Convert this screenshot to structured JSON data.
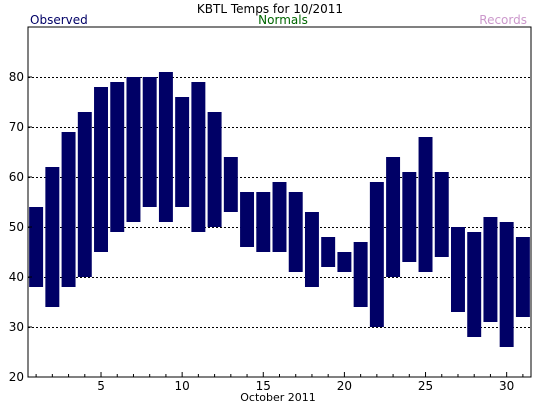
{
  "chart_data": {
    "type": "bar",
    "subtype": "floating-range",
    "title": "KBTL Temps for 10/2011",
    "legend": [
      {
        "label": "Observed",
        "color": "#000066"
      },
      {
        "label": "Normals",
        "color": "#006600"
      },
      {
        "label": "Records",
        "color": "#cc99cc"
      }
    ],
    "xlabel": "October 2011",
    "x_ticks": [
      "5",
      "10",
      "15",
      "20",
      "25",
      "30"
    ],
    "y_ticks": [
      "20",
      "30",
      "40",
      "50",
      "60",
      "70",
      "80"
    ],
    "xlim": [
      0.5,
      31.5
    ],
    "ylim": [
      20,
      90
    ],
    "grid": "horizontal dashed",
    "bar_color": "#000066",
    "days": [
      1,
      2,
      3,
      4,
      5,
      6,
      7,
      8,
      9,
      10,
      11,
      12,
      13,
      14,
      15,
      16,
      17,
      18,
      19,
      20,
      21,
      22,
      23,
      24,
      25,
      26,
      27,
      28,
      29,
      30,
      31
    ],
    "highs": [
      54,
      62,
      69,
      73,
      78,
      79,
      80,
      80,
      81,
      76,
      79,
      73,
      64,
      57,
      57,
      59,
      57,
      53,
      48,
      45,
      47,
      59,
      64,
      61,
      68,
      61,
      50,
      49,
      52,
      51,
      48
    ],
    "lows": [
      38,
      34,
      38,
      40,
      45,
      49,
      51,
      54,
      51,
      54,
      49,
      50,
      53,
      46,
      45,
      45,
      41,
      38,
      42,
      41,
      34,
      30,
      40,
      43,
      41,
      44,
      33,
      28,
      31,
      26,
      32
    ]
  }
}
